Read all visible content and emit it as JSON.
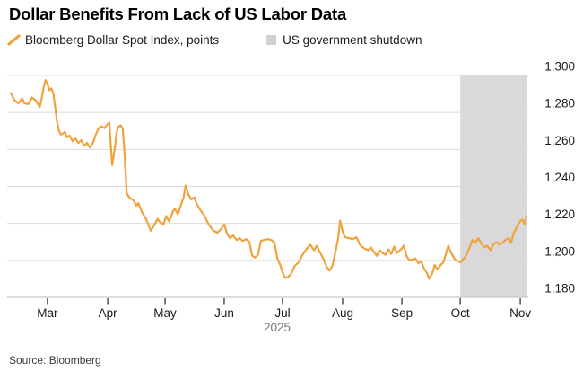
{
  "title": "Dollar Benefits From Lack of US Labor Data",
  "legend": {
    "line_series": "Bloomberg Dollar Spot Index, points",
    "band_series": "US government shutdown"
  },
  "source": "Source: Bloomberg",
  "colors": {
    "line": "#F0A23C",
    "band": "#D9D9D9",
    "gridline": "#DBDBDB",
    "axis_line": "#C6C6C6",
    "tick": "#222222",
    "text": "#1A1A1A",
    "muted_text": "#757575"
  },
  "chart_data": {
    "type": "line",
    "title": "Dollar Benefits From Lack of US Labor Data",
    "ylabel": "Bloomberg Dollar Spot Index, points",
    "x_axis": {
      "unit": "trading days, mid-Feb 2025 to early Nov 2025",
      "year_label": "2025",
      "ticks": [
        {
          "label": "Mar",
          "d": 19
        },
        {
          "label": "Apr",
          "d": 50.2
        },
        {
          "label": "May",
          "d": 79.9
        },
        {
          "label": "Jun",
          "d": 110.5
        },
        {
          "label": "Jul",
          "d": 140.7
        },
        {
          "label": "Aug",
          "d": 171.8
        },
        {
          "label": "Sep",
          "d": 202.5
        },
        {
          "label": "Oct",
          "d": 232.7
        },
        {
          "label": "Nov",
          "d": 263.8
        }
      ]
    },
    "y_axis": {
      "min": 1180,
      "max": 1300,
      "step": 20,
      "side": "right",
      "grid": true,
      "tick_labels": [
        "1,300",
        "1,280",
        "1,260",
        "1,240",
        "1,220",
        "1,200",
        "1,180"
      ]
    },
    "band": {
      "label": "US government shutdown",
      "start_d": 232.7,
      "end_d": 268,
      "color": "#D9D9D9"
    },
    "series": [
      {
        "name": "Bloomberg Dollar Spot Index, points",
        "color": "#F0A23C",
        "points": [
          [
            0,
            1290.5
          ],
          [
            2,
            1286.5
          ],
          [
            4,
            1285
          ],
          [
            6,
            1287.5
          ],
          [
            7,
            1285
          ],
          [
            9,
            1284.5
          ],
          [
            11,
            1288
          ],
          [
            13,
            1286.5
          ],
          [
            15,
            1283
          ],
          [
            16,
            1287.5
          ],
          [
            17,
            1293.5
          ],
          [
            18,
            1297.5
          ],
          [
            19,
            1295.5
          ],
          [
            20,
            1292
          ],
          [
            21,
            1293
          ],
          [
            22,
            1290.5
          ],
          [
            23,
            1283
          ],
          [
            24,
            1274.5
          ],
          [
            25,
            1270
          ],
          [
            26,
            1268
          ],
          [
            27,
            1268.5
          ],
          [
            28,
            1269.5
          ],
          [
            29,
            1266.5
          ],
          [
            30.5,
            1267.5
          ],
          [
            32,
            1264.5
          ],
          [
            33.5,
            1266
          ],
          [
            35,
            1263.5
          ],
          [
            36.5,
            1265
          ],
          [
            38,
            1262
          ],
          [
            39.5,
            1263.5
          ],
          [
            41,
            1261
          ],
          [
            42.5,
            1263.5
          ],
          [
            44,
            1268
          ],
          [
            45.5,
            1271.5
          ],
          [
            47,
            1272.5
          ],
          [
            48.5,
            1271.5
          ],
          [
            50,
            1273.5
          ],
          [
            51,
            1274.5
          ],
          [
            52,
            1259
          ],
          [
            52.5,
            1251.5
          ],
          [
            54,
            1262
          ],
          [
            55,
            1270
          ],
          [
            56,
            1272.5
          ],
          [
            57,
            1273
          ],
          [
            58,
            1271
          ],
          [
            59,
            1256
          ],
          [
            60,
            1236.5
          ],
          [
            61,
            1234.5
          ],
          [
            62,
            1233.5
          ],
          [
            64,
            1232
          ],
          [
            65,
            1229.5
          ],
          [
            66,
            1231
          ],
          [
            68,
            1226
          ],
          [
            70,
            1222.5
          ],
          [
            71,
            1220
          ],
          [
            72.5,
            1216
          ],
          [
            74,
            1218.5
          ],
          [
            76,
            1222.5
          ],
          [
            77,
            1221
          ],
          [
            79,
            1219.5
          ],
          [
            80.5,
            1224
          ],
          [
            82,
            1221
          ],
          [
            84,
            1226.5
          ],
          [
            85,
            1228
          ],
          [
            86.5,
            1225
          ],
          [
            88,
            1229.5
          ],
          [
            89.5,
            1234
          ],
          [
            90.5,
            1240.5
          ],
          [
            92,
            1235.5
          ],
          [
            93.5,
            1233
          ],
          [
            95,
            1234
          ],
          [
            96.5,
            1230
          ],
          [
            98,
            1227.5
          ],
          [
            100,
            1224.5
          ],
          [
            101,
            1222.5
          ],
          [
            102.5,
            1219.5
          ],
          [
            105,
            1216
          ],
          [
            107,
            1215
          ],
          [
            109,
            1217
          ],
          [
            110.5,
            1219.5
          ],
          [
            112,
            1214.5
          ],
          [
            113.5,
            1212
          ],
          [
            115,
            1213.5
          ],
          [
            117,
            1211
          ],
          [
            118.5,
            1212
          ],
          [
            120,
            1210.5
          ],
          [
            122,
            1211.5
          ],
          [
            123.5,
            1210
          ],
          [
            125,
            1202.5
          ],
          [
            126.5,
            1201.5
          ],
          [
            128,
            1203
          ],
          [
            129.5,
            1210.5
          ],
          [
            131,
            1211
          ],
          [
            133,
            1211.5
          ],
          [
            135,
            1211
          ],
          [
            136.5,
            1209.5
          ],
          [
            138,
            1201
          ],
          [
            139.5,
            1197.5
          ],
          [
            141,
            1193
          ],
          [
            142,
            1190.5
          ],
          [
            143.5,
            1191
          ],
          [
            145,
            1192.5
          ],
          [
            147,
            1197
          ],
          [
            149,
            1199
          ],
          [
            151,
            1203
          ],
          [
            153,
            1206
          ],
          [
            155,
            1208.5
          ],
          [
            157,
            1205.5
          ],
          [
            158.5,
            1208
          ],
          [
            160,
            1204.5
          ],
          [
            162,
            1200.5
          ],
          [
            163.5,
            1196.5
          ],
          [
            165,
            1194.5
          ],
          [
            166.5,
            1197
          ],
          [
            168,
            1204
          ],
          [
            169.5,
            1212
          ],
          [
            170.5,
            1221.5
          ],
          [
            172,
            1215
          ],
          [
            173,
            1212.5
          ],
          [
            175,
            1212
          ],
          [
            177,
            1211.5
          ],
          [
            179,
            1212.5
          ],
          [
            181,
            1208
          ],
          [
            183,
            1206.5
          ],
          [
            185,
            1205.5
          ],
          [
            186.5,
            1207
          ],
          [
            188,
            1204.5
          ],
          [
            189.5,
            1202.5
          ],
          [
            191,
            1205.5
          ],
          [
            192.5,
            1204
          ],
          [
            194,
            1203
          ],
          [
            195.5,
            1206
          ],
          [
            197,
            1203.5
          ],
          [
            198.5,
            1207.5
          ],
          [
            200,
            1204
          ],
          [
            201.5,
            1205.5
          ],
          [
            202.5,
            1206.5
          ],
          [
            203.5,
            1208
          ],
          [
            205,
            1202
          ],
          [
            206.5,
            1200
          ],
          [
            208,
            1200.5
          ],
          [
            209.5,
            1201
          ],
          [
            211,
            1198.5
          ],
          [
            212.5,
            1199.5
          ],
          [
            214,
            1195.5
          ],
          [
            215.5,
            1193
          ],
          [
            216.5,
            1190
          ],
          [
            218,
            1192.5
          ],
          [
            219.5,
            1197.5
          ],
          [
            221,
            1195
          ],
          [
            222.5,
            1197.5
          ],
          [
            224,
            1199
          ],
          [
            226.5,
            1208
          ],
          [
            228,
            1204
          ],
          [
            230,
            1200.5
          ],
          [
            231.5,
            1199.5
          ],
          [
            233,
            1199
          ],
          [
            234,
            1200.5
          ],
          [
            235.5,
            1202
          ],
          [
            237,
            1205.5
          ],
          [
            239,
            1211
          ],
          [
            240.5,
            1209.5
          ],
          [
            242,
            1212
          ],
          [
            244,
            1208.5
          ],
          [
            245,
            1207
          ],
          [
            246.5,
            1208
          ],
          [
            248.5,
            1205.5
          ],
          [
            250,
            1209
          ],
          [
            251.5,
            1210
          ],
          [
            253,
            1208.5
          ],
          [
            254.5,
            1209.5
          ],
          [
            256,
            1211
          ],
          [
            258,
            1212
          ],
          [
            259,
            1209.5
          ],
          [
            260.5,
            1215
          ],
          [
            262.5,
            1219
          ],
          [
            264,
            1221.5
          ],
          [
            265,
            1222
          ],
          [
            266,
            1219.5
          ],
          [
            267,
            1224
          ]
        ]
      }
    ]
  }
}
